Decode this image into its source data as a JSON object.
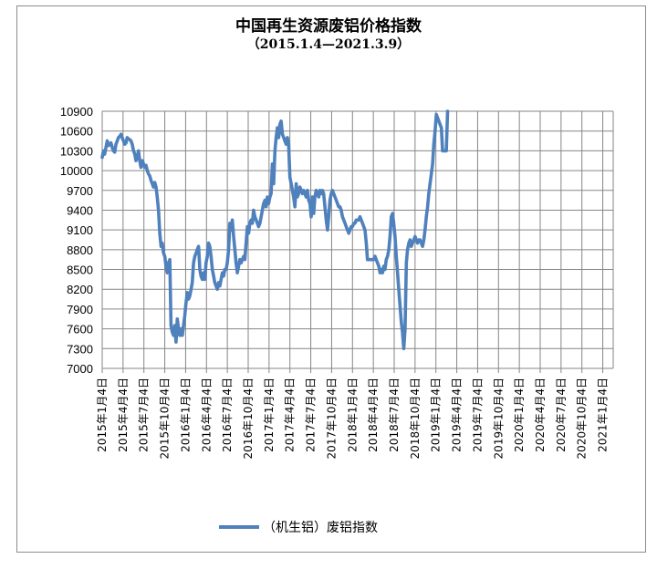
{
  "chart_data": {
    "type": "line",
    "title": "中国再生资源废铝价格指数",
    "subtitle": "（2015.1.4—2021.3.9）",
    "xlabel": "",
    "ylabel": "",
    "ylim": [
      7000,
      10900
    ],
    "yticks": [
      "10900",
      "10600",
      "10300",
      "10000",
      "9700",
      "9400",
      "9100",
      "8800",
      "8500",
      "8200",
      "7900",
      "7600",
      "7300",
      "7000"
    ],
    "xticks": [
      "2015年1月4日",
      "2015年4月4日",
      "2015年7月4日",
      "2015年10月4日",
      "2016年1月4日",
      "2016年4月4日",
      "2016年7月4日",
      "2016年10月4日",
      "2017年1月4日",
      "2017年4月4日",
      "2017年7月4日",
      "2017年10月4日",
      "2018年1月4日",
      "2018年4月4日",
      "2018年7月4日",
      "2018年10月4日",
      "2019年1月4日",
      "2019年4月4日",
      "2019年7月4日",
      "2019年10月4日",
      "2020年1月4日",
      "2020年4月4日",
      "2020年7月4日",
      "2020年10月4日",
      "2021年1月4日"
    ],
    "grid": true,
    "legend_position": "bottom",
    "color": "#4f81bd",
    "series": [
      {
        "name": "（机生铝）废铝指数",
        "points": [
          [
            0.0,
            10200
          ],
          [
            0.06,
            10300
          ],
          [
            0.12,
            10250
          ],
          [
            0.18,
            10350
          ],
          [
            0.24,
            10450
          ],
          [
            0.3,
            10380
          ],
          [
            0.36,
            10400
          ],
          [
            0.42,
            10420
          ],
          [
            0.48,
            10350
          ],
          [
            0.54,
            10300
          ],
          [
            0.6,
            10280
          ],
          [
            0.66,
            10400
          ],
          [
            0.72,
            10450
          ],
          [
            0.78,
            10500
          ],
          [
            0.84,
            10520
          ],
          [
            0.9,
            10550
          ],
          [
            0.96,
            10500
          ],
          [
            1.02,
            10450
          ],
          [
            1.08,
            10400
          ],
          [
            1.14,
            10420
          ],
          [
            1.2,
            10500
          ],
          [
            1.26,
            10480
          ],
          [
            1.32,
            10470
          ],
          [
            1.38,
            10450
          ],
          [
            1.44,
            10400
          ],
          [
            1.5,
            10300
          ],
          [
            1.56,
            10250
          ],
          [
            1.62,
            10150
          ],
          [
            1.68,
            10200
          ],
          [
            1.74,
            10300
          ],
          [
            1.8,
            10150
          ],
          [
            1.86,
            10050
          ],
          [
            1.92,
            10150
          ],
          [
            1.98,
            10100
          ],
          [
            2.04,
            10050
          ],
          [
            2.1,
            10080
          ],
          [
            2.16,
            10000
          ],
          [
            2.22,
            9950
          ],
          [
            2.28,
            9920
          ],
          [
            2.34,
            9850
          ],
          [
            2.4,
            9800
          ],
          [
            2.46,
            9750
          ],
          [
            2.52,
            9820
          ],
          [
            2.58,
            9750
          ],
          [
            2.64,
            9600
          ],
          [
            2.7,
            9400
          ],
          [
            2.76,
            9050
          ],
          [
            2.82,
            8850
          ],
          [
            2.88,
            8900
          ],
          [
            2.94,
            8750
          ],
          [
            3.0,
            8700
          ],
          [
            3.06,
            8550
          ],
          [
            3.12,
            8450
          ],
          [
            3.18,
            8600
          ],
          [
            3.24,
            8650
          ],
          [
            3.3,
            7650
          ],
          [
            3.36,
            7550
          ],
          [
            3.42,
            7500
          ],
          [
            3.48,
            7650
          ],
          [
            3.54,
            7400
          ],
          [
            3.6,
            7750
          ],
          [
            3.66,
            7600
          ],
          [
            3.72,
            7500
          ],
          [
            3.78,
            7600
          ],
          [
            3.84,
            7500
          ],
          [
            3.9,
            7650
          ],
          [
            3.96,
            7800
          ],
          [
            4.02,
            8000
          ],
          [
            4.08,
            8150
          ],
          [
            4.14,
            8050
          ],
          [
            4.2,
            8100
          ],
          [
            4.26,
            8200
          ],
          [
            4.32,
            8300
          ],
          [
            4.38,
            8600
          ],
          [
            4.44,
            8700
          ],
          [
            4.5,
            8750
          ],
          [
            4.56,
            8800
          ],
          [
            4.62,
            8850
          ],
          [
            4.68,
            8500
          ],
          [
            4.74,
            8400
          ],
          [
            4.8,
            8350
          ],
          [
            4.86,
            8450
          ],
          [
            4.92,
            8350
          ],
          [
            4.98,
            8600
          ],
          [
            5.04,
            8700
          ],
          [
            5.1,
            8900
          ],
          [
            5.16,
            8850
          ],
          [
            5.22,
            8700
          ],
          [
            5.28,
            8500
          ],
          [
            5.34,
            8400
          ],
          [
            5.4,
            8300
          ],
          [
            5.46,
            8250
          ],
          [
            5.52,
            8200
          ],
          [
            5.58,
            8300
          ],
          [
            5.64,
            8250
          ],
          [
            5.7,
            8350
          ],
          [
            5.76,
            8450
          ],
          [
            5.82,
            8400
          ],
          [
            5.88,
            8500
          ],
          [
            5.94,
            8500
          ],
          [
            6.0,
            8600
          ],
          [
            6.06,
            8800
          ],
          [
            6.12,
            9200
          ],
          [
            6.18,
            9100
          ],
          [
            6.24,
            9250
          ],
          [
            6.3,
            9000
          ],
          [
            6.36,
            8800
          ],
          [
            6.42,
            8600
          ],
          [
            6.48,
            8450
          ],
          [
            6.54,
            8550
          ],
          [
            6.6,
            8650
          ],
          [
            6.66,
            8600
          ],
          [
            6.72,
            8650
          ],
          [
            6.78,
            8700
          ],
          [
            6.84,
            8650
          ],
          [
            6.9,
            8900
          ],
          [
            6.96,
            9150
          ],
          [
            7.02,
            9050
          ],
          [
            7.08,
            9200
          ],
          [
            7.14,
            9250
          ],
          [
            7.2,
            9200
          ],
          [
            7.26,
            9400
          ],
          [
            7.32,
            9300
          ],
          [
            7.38,
            9250
          ],
          [
            7.44,
            9200
          ],
          [
            7.5,
            9150
          ],
          [
            7.56,
            9200
          ],
          [
            7.62,
            9300
          ],
          [
            7.68,
            9400
          ],
          [
            7.74,
            9500
          ],
          [
            7.8,
            9550
          ],
          [
            7.86,
            9450
          ],
          [
            7.92,
            9600
          ],
          [
            7.98,
            9500
          ],
          [
            8.04,
            9600
          ],
          [
            8.1,
            9650
          ],
          [
            8.16,
            10100
          ],
          [
            8.22,
            9800
          ],
          [
            8.28,
            10300
          ],
          [
            8.34,
            10500
          ],
          [
            8.4,
            10650
          ],
          [
            8.46,
            10500
          ],
          [
            8.52,
            10700
          ],
          [
            8.58,
            10750
          ],
          [
            8.64,
            10550
          ],
          [
            8.7,
            10500
          ],
          [
            8.76,
            10450
          ],
          [
            8.82,
            10400
          ],
          [
            8.88,
            10500
          ],
          [
            8.94,
            10400
          ],
          [
            9.0,
            9900
          ],
          [
            9.06,
            9800
          ],
          [
            9.12,
            9700
          ],
          [
            9.18,
            9600
          ],
          [
            9.24,
            9450
          ],
          [
            9.3,
            9800
          ],
          [
            9.36,
            9600
          ],
          [
            9.42,
            9650
          ],
          [
            9.48,
            9750
          ],
          [
            9.54,
            9700
          ],
          [
            9.6,
            9650
          ],
          [
            9.66,
            9700
          ],
          [
            9.72,
            9650
          ],
          [
            9.78,
            9600
          ],
          [
            9.84,
            9700
          ],
          [
            9.9,
            9550
          ],
          [
            9.96,
            9500
          ],
          [
            10.02,
            9300
          ],
          [
            10.08,
            9600
          ],
          [
            10.14,
            9350
          ],
          [
            10.2,
            9600
          ],
          [
            10.26,
            9700
          ],
          [
            10.32,
            9650
          ],
          [
            10.38,
            9600
          ],
          [
            10.44,
            9700
          ],
          [
            10.5,
            9650
          ],
          [
            10.56,
            9700
          ],
          [
            10.62,
            9650
          ],
          [
            10.68,
            9450
          ],
          [
            10.74,
            9250
          ],
          [
            10.8,
            9100
          ],
          [
            10.86,
            9300
          ],
          [
            10.92,
            9550
          ],
          [
            10.98,
            9650
          ],
          [
            11.04,
            9700
          ],
          [
            11.1,
            9650
          ],
          [
            11.16,
            9600
          ],
          [
            11.22,
            9550
          ],
          [
            11.28,
            9500
          ],
          [
            11.34,
            9450
          ],
          [
            11.4,
            9450
          ],
          [
            11.46,
            9400
          ],
          [
            11.52,
            9300
          ],
          [
            11.58,
            9250
          ],
          [
            11.64,
            9200
          ],
          [
            11.7,
            9150
          ],
          [
            11.76,
            9100
          ],
          [
            11.82,
            9050
          ],
          [
            11.88,
            9100
          ],
          [
            11.94,
            9150
          ],
          [
            12.0,
            9150
          ],
          [
            12.06,
            9200
          ],
          [
            12.12,
            9200
          ],
          [
            12.18,
            9250
          ],
          [
            12.24,
            9250
          ],
          [
            12.3,
            9250
          ],
          [
            12.36,
            9300
          ],
          [
            12.42,
            9250
          ],
          [
            12.48,
            9200
          ],
          [
            12.54,
            9150
          ],
          [
            12.6,
            9100
          ],
          [
            12.66,
            8900
          ],
          [
            12.72,
            8650
          ],
          [
            12.78,
            8650
          ],
          [
            12.84,
            8650
          ],
          [
            12.9,
            8650
          ],
          [
            12.96,
            8650
          ],
          [
            13.02,
            8650
          ],
          [
            13.08,
            8700
          ],
          [
            13.14,
            8650
          ],
          [
            13.2,
            8600
          ],
          [
            13.26,
            8550
          ],
          [
            13.32,
            8450
          ],
          [
            13.38,
            8500
          ],
          [
            13.44,
            8450
          ],
          [
            13.5,
            8550
          ],
          [
            13.56,
            8500
          ],
          [
            13.62,
            8650
          ],
          [
            13.68,
            8700
          ],
          [
            13.74,
            8800
          ],
          [
            13.8,
            9000
          ],
          [
            13.86,
            9300
          ],
          [
            13.92,
            9350
          ],
          [
            13.98,
            9200
          ],
          [
            14.04,
            9000
          ],
          [
            14.1,
            8700
          ],
          [
            14.16,
            8450
          ],
          [
            14.22,
            8200
          ],
          [
            14.28,
            7950
          ],
          [
            14.34,
            7700
          ],
          [
            14.4,
            7550
          ],
          [
            14.46,
            7300
          ],
          [
            14.52,
            7600
          ],
          [
            14.58,
            8600
          ],
          [
            14.64,
            8800
          ],
          [
            14.7,
            8900
          ],
          [
            14.76,
            8950
          ],
          [
            14.82,
            8850
          ],
          [
            14.88,
            8900
          ],
          [
            14.94,
            8950
          ],
          [
            15.0,
            9000
          ],
          [
            15.06,
            8950
          ],
          [
            15.12,
            8900
          ],
          [
            15.18,
            8950
          ],
          [
            15.24,
            8950
          ],
          [
            15.3,
            8900
          ],
          [
            15.36,
            8850
          ],
          [
            15.42,
            8950
          ],
          [
            15.48,
            9100
          ],
          [
            15.54,
            9300
          ],
          [
            15.6,
            9450
          ],
          [
            15.66,
            9650
          ],
          [
            15.72,
            9800
          ],
          [
            15.78,
            9950
          ],
          [
            15.84,
            10100
          ],
          [
            15.9,
            10400
          ],
          [
            15.96,
            10600
          ],
          [
            16.02,
            10850
          ],
          [
            16.08,
            10800
          ],
          [
            16.14,
            10750
          ],
          [
            16.2,
            10700
          ],
          [
            16.26,
            10650
          ],
          [
            16.32,
            10300
          ],
          [
            16.38,
            10300
          ],
          [
            16.44,
            10300
          ],
          [
            16.5,
            10300
          ],
          [
            16.56,
            10900
          ]
        ]
      }
    ]
  }
}
